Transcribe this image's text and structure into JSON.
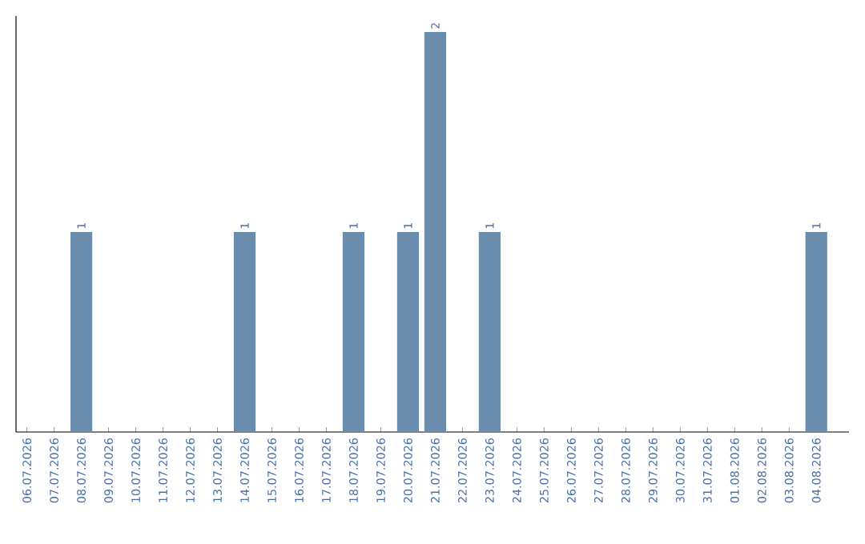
{
  "chart_data": {
    "type": "bar",
    "categories": [
      "06.07.2026",
      "07.07.2026",
      "08.07.2026",
      "09.07.2026",
      "10.07.2026",
      "11.07.2026",
      "12.07.2026",
      "13.07.2026",
      "14.07.2026",
      "15.07.2026",
      "16.07.2026",
      "17.07.2026",
      "18.07.2026",
      "19.07.2026",
      "20.07.2026",
      "21.07.2026",
      "22.07.2026",
      "23.07.2026",
      "24.07.2026",
      "25.07.2026",
      "26.07.2026",
      "27.07.2026",
      "28.07.2026",
      "29.07.2026",
      "30.07.2026",
      "31.07.2026",
      "01.08.2026",
      "02.08.2026",
      "03.08.2026",
      "04.08.2026"
    ],
    "values": [
      0,
      0,
      1,
      0,
      0,
      0,
      0,
      0,
      1,
      0,
      0,
      0,
      1,
      0,
      1,
      2,
      0,
      1,
      0,
      0,
      0,
      0,
      0,
      0,
      0,
      0,
      0,
      0,
      0,
      1
    ],
    "value_labels": [
      null,
      null,
      "1",
      null,
      null,
      null,
      null,
      null,
      "1",
      null,
      null,
      null,
      "1",
      null,
      "1",
      "2",
      null,
      "1",
      null,
      null,
      null,
      null,
      null,
      null,
      null,
      null,
      null,
      null,
      null,
      "1"
    ],
    "color": "#6a8cad"
  }
}
